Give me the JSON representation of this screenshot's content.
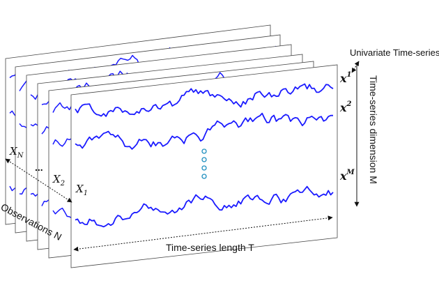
{
  "labels": {
    "univariate": "Univariate Time-series",
    "dimension": "Time-series dimension M",
    "length": "Time-series length T",
    "observations": "Observations N",
    "ellipsis": "..."
  },
  "obs_labels": {
    "n_base": "X",
    "n_sub": "N",
    "two_base": "X",
    "two_sub": "2",
    "one_base": "X",
    "one_sub": "1"
  },
  "series_labels": {
    "s1_base": "x",
    "s1_sup": "1",
    "s2_base": "x",
    "s2_sup": "2",
    "sm_base": "x",
    "sm_sup": "M"
  },
  "colors": {
    "series": "#1a1aff",
    "dots": "#1f8fbf",
    "frame": "#444444",
    "text": "#111111"
  }
}
